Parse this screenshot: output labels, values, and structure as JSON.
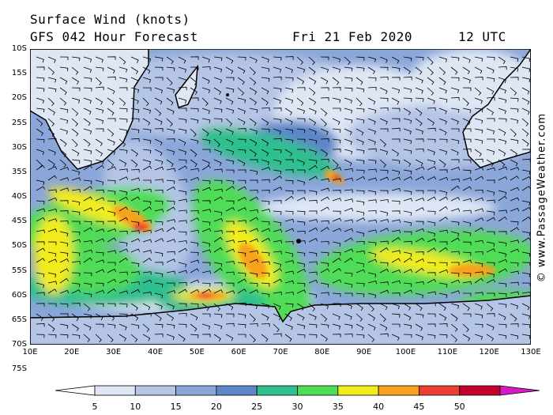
{
  "header": {
    "title": "Surface Wind (knots)",
    "model": "GFS 042 Hour Forecast",
    "date": "Fri 21 Feb 2020",
    "time": "12 UTC"
  },
  "credit": "© www.PassageWeather.com",
  "lat_labels": [
    "10S",
    "15S",
    "20S",
    "25S",
    "30S",
    "35S",
    "40S",
    "45S",
    "50S",
    "55S",
    "60S",
    "65S",
    "70S",
    "75S"
  ],
  "lon_labels": [
    "10E",
    "20E",
    "30E",
    "40E",
    "50E",
    "60E",
    "70E",
    "80E",
    "90E",
    "100E",
    "110E",
    "120E",
    "130E"
  ],
  "colorbar": {
    "ticks": [
      "5",
      "10",
      "15",
      "20",
      "25",
      "30",
      "35",
      "40",
      "45",
      "50"
    ],
    "colors": [
      "#dfe7f5",
      "#b4c5e6",
      "#8ba6d9",
      "#5d86c8",
      "#2fbf8f",
      "#4fdc57",
      "#f3ec1c",
      "#f7a11c",
      "#ec3f33",
      "#c2002a",
      "#d71ac8"
    ]
  },
  "map_colors": {
    "land": "#ffffff",
    "coast": "#000000"
  }
}
